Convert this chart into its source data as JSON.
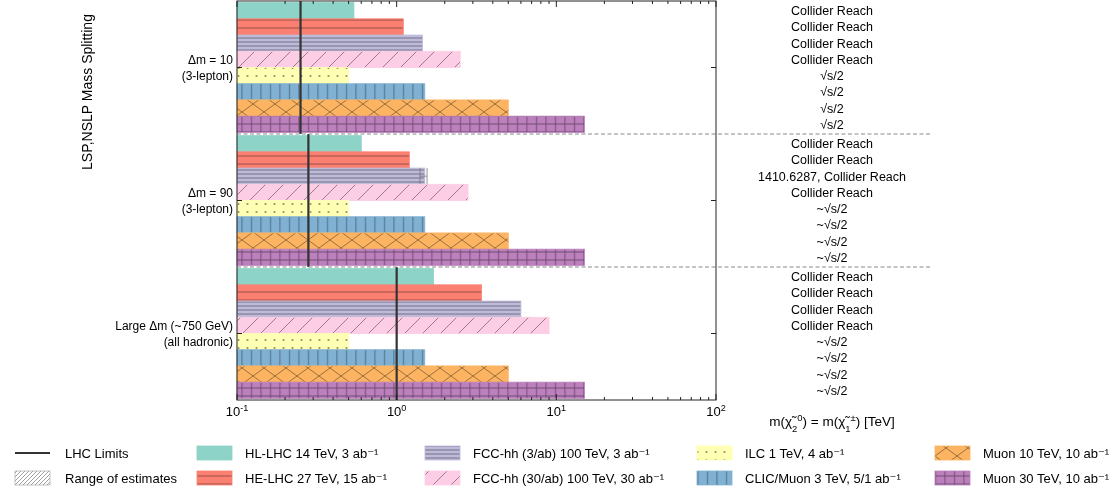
{
  "chart_data": {
    "type": "bar",
    "orientation": "horizontal",
    "log": "x",
    "grid": false,
    "legend": "bottom",
    "ylabel": "LSP,NSLP Mass Splitting",
    "xlabel": "m(χ̃$_{2}$$^{0}$) = m(χ̃$_{1}$$^{±}$) [TeV]",
    "categories": [
      "Δm = 10\n(3-lepton)",
      "Δm = 90\n(3-lepton)",
      "Large Δm (~750 GeV)\n(all hadronic)"
    ],
    "xlim": [
      0.1,
      100
    ],
    "xticks": [
      {
        "value": 0.1,
        "label": "10$^{-1}$"
      },
      {
        "value": 1,
        "label": "10$^{0}$"
      },
      {
        "value": 10,
        "label": "10$^{1}$"
      },
      {
        "value": 100,
        "label": "10$^{2}$"
      }
    ],
    "series": [
      {
        "name": "HL-LHC 14 TeV, 3 ab⁻¹",
        "color": "#8dd3c7",
        "values": [
          0.54,
          0.6,
          1.7
        ]
      },
      {
        "name": "HE-LHC 27 TeV, 15 ab⁻¹",
        "color": "#fb8072",
        "values": [
          1.1,
          1.2,
          3.4
        ]
      },
      {
        "name": "FCC-hh (3/ab) 100 TeV, 3 ab⁻¹",
        "color": "#bebada",
        "values": [
          1.45,
          1.5,
          6.0
        ],
        "errors": [
          null,
          [
            1.4,
            1.55
          ],
          null
        ]
      },
      {
        "name": "FCC-hh (30/ab) 100 TeV, 30 ab⁻¹",
        "color": "#fccde5",
        "values": [
          2.5,
          2.8,
          9.0
        ]
      },
      {
        "name": "ILC 1 TeV, 4 ab⁻¹",
        "color": "#ffffb3",
        "values": [
          0.5,
          0.5,
          0.5
        ]
      },
      {
        "name": "CLIC/Muon 3 TeV, 5/1 ab⁻¹",
        "color": "#80b1d3",
        "values": [
          1.5,
          1.5,
          1.5
        ]
      },
      {
        "name": "Muon 10 TeV, 10 ab⁻¹",
        "color": "#fdb462",
        "values": [
          5,
          5,
          5
        ]
      },
      {
        "name": "Muon 30 TeV, 10 ab⁻¹",
        "color": "#bc80bd",
        "values": [
          15,
          15,
          15
        ]
      }
    ],
    "ref_lines": [
      {
        "axis": "x",
        "value": 0.25,
        "label": "LHC Limits",
        "color": "#333333"
      },
      {
        "axis": "x",
        "value": 0.28,
        "color": "#333333"
      },
      {
        "axis": "x",
        "value": 1.0,
        "color": "#333333"
      }
    ],
    "annotations": [
      "Collider Reach",
      "Collider Reach",
      "Collider Reach",
      "Collider Reach",
      "√s/2",
      "√s/2",
      "√s/2",
      "√s/2",
      "Collider Reach",
      "Collider Reach",
      "1410.6287, Collider Reach",
      "Collider Reach",
      "~√s/2",
      "~√s/2",
      "~√s/2",
      "~√s/2",
      "Collider Reach",
      "Collider Reach",
      "Collider Reach",
      "Collider Reach",
      "~√s/2",
      "~√s/2",
      "~√s/2",
      "~√s/2",
      "Range of estimates"
    ]
  }
}
